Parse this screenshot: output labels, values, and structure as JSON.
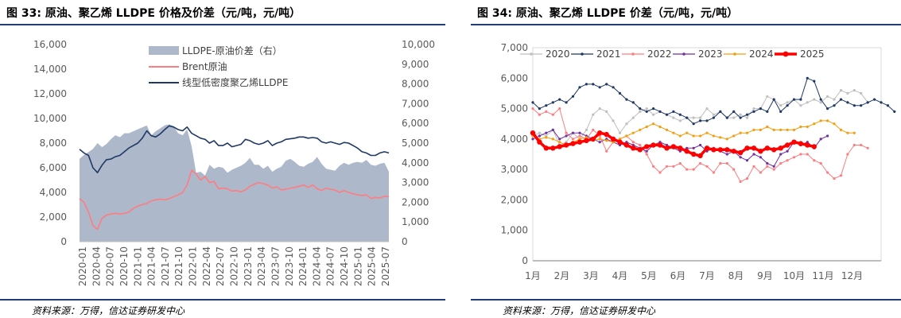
{
  "charts": [
    {
      "figure_label": "图 33: 原油、聚乙烯 LLDPE 价格及价差（元/吨，元/吨）",
      "source": "资料来源：万得，信达证券研发中心"
    },
    {
      "figure_label": "图 34: 原油、聚乙烯 LLDPE 价差（元/吨，元/吨）",
      "source": "资料来源：万得，信达证券研发中心"
    }
  ],
  "chart_data": [
    {
      "type": "line",
      "title": "原油、聚乙烯 LLDPE 价格及价差（元/吨，元/吨）",
      "x_labels": [
        "2020-01",
        "2020-04",
        "2020-07",
        "2020-10",
        "2021-01",
        "2021-04",
        "2021-07",
        "2021-10",
        "2022-01",
        "2022-04",
        "2022-07",
        "2022-10",
        "2023-01",
        "2023-04",
        "2023-07",
        "2023-10",
        "2024-01",
        "2024-04",
        "2024-07",
        "2024-10",
        "2025-01",
        "2025-04",
        "2025-07"
      ],
      "y_left": {
        "min": 0,
        "max": 16000,
        "ticks": [
          "0",
          "2,000",
          "4,000",
          "6,000",
          "8,000",
          "10,000",
          "12,000",
          "14,000",
          "16,000"
        ]
      },
      "y_right": {
        "min": 0,
        "max": 10000,
        "ticks": [
          "0",
          "1,000",
          "2,000",
          "3,000",
          "4,000",
          "5,000",
          "6,000",
          "7,000",
          "8,000",
          "9,000",
          "10,000"
        ]
      },
      "series": [
        {
          "name": "LLDPE-原油价差（右）",
          "kind": "area",
          "axis": "right",
          "color": "#adb9ca",
          "values": [
            4200,
            4400,
            4550,
            4700,
            5000,
            4800,
            4950,
            5200,
            5400,
            5300,
            5500,
            5500,
            5600,
            5700,
            5800,
            5900,
            5400,
            5600,
            5750,
            5900,
            5950,
            5850,
            5500,
            5400,
            5700,
            4850,
            3500,
            3550,
            3350,
            3900,
            3700,
            3800,
            3750,
            3500,
            3650,
            3750,
            3850,
            4000,
            4250,
            3900,
            3900,
            3700,
            3850,
            3550,
            3700,
            3800,
            4100,
            4200,
            4050,
            3850,
            3800,
            3950,
            4050,
            4300,
            3950,
            3700,
            3650,
            3600,
            3850,
            4000,
            3900,
            4000,
            4050,
            4000,
            4150,
            3900,
            3850,
            3950,
            4000,
            3550
          ]
        },
        {
          "name": "Brent原油",
          "kind": "line",
          "axis": "left",
          "color": "#ff7c80",
          "values": [
            3500,
            3200,
            2400,
            1300,
            1000,
            1900,
            2150,
            2250,
            2300,
            2250,
            2300,
            2400,
            2700,
            2900,
            3000,
            3100,
            3300,
            3400,
            3450,
            3400,
            3500,
            3650,
            3800,
            4000,
            4600,
            5800,
            5500,
            5000,
            5300,
            4800,
            4900,
            4300,
            4350,
            4300,
            4100,
            4150,
            4050,
            4200,
            4500,
            4650,
            4800,
            4700,
            4600,
            4350,
            4450,
            4200,
            4250,
            4350,
            4400,
            4500,
            4600,
            4400,
            4600,
            4300,
            4150,
            4350,
            4250,
            4200,
            4000,
            4150,
            4000,
            3900,
            3800,
            3750,
            3800,
            3500,
            3600,
            3550,
            3700,
            3650
          ]
        },
        {
          "name": "线型低密度聚乙烯LLDPE",
          "kind": "line",
          "axis": "left",
          "color": "#1f3864",
          "values": [
            7500,
            7200,
            7000,
            6000,
            5600,
            6200,
            6650,
            6700,
            6900,
            7000,
            7300,
            7600,
            7800,
            8000,
            8400,
            9000,
            8600,
            8500,
            8750,
            9100,
            9400,
            9300,
            9100,
            9000,
            9300,
            8800,
            8600,
            8400,
            8300,
            8000,
            8200,
            7800,
            7800,
            8000,
            7700,
            7800,
            7900,
            8300,
            8200,
            8000,
            7900,
            8000,
            8200,
            7800,
            8000,
            8100,
            8300,
            8350,
            8400,
            8500,
            8500,
            8400,
            8450,
            8400,
            8100,
            8000,
            8100,
            8000,
            7900,
            8050,
            8000,
            7800,
            7600,
            7300,
            7200,
            7000,
            7000,
            7200,
            7300,
            7200
          ]
        }
      ]
    },
    {
      "type": "line",
      "title": "原油、聚乙烯 LLDPE 价差（元/吨，元/吨）",
      "x_labels": [
        "1月",
        "2月",
        "3月",
        "4月",
        "5月",
        "6月",
        "7月",
        "8月",
        "9月",
        "10月",
        "11月",
        "12月"
      ],
      "y": {
        "min": 0,
        "max": 7000,
        "ticks": [
          "0",
          "1,000",
          "2,000",
          "3,000",
          "4,000",
          "5,000",
          "6,000",
          "7,000"
        ]
      },
      "series": [
        {
          "name": "2020",
          "color": "#bfbfbf",
          "marker": "circle",
          "values": [
            4100,
            4200,
            4100,
            4300,
            3800,
            3900,
            4200,
            4000,
            4300,
            4800,
            5000,
            4900,
            4600,
            4200,
            4500,
            4700,
            4900,
            5000,
            4800,
            4900,
            4800,
            4700,
            4600,
            4700,
            4700,
            4700,
            5000,
            4800,
            4900,
            4700,
            4700,
            4800,
            4700,
            5000,
            5000,
            5400,
            5300,
            5100,
            5200,
            5300,
            5100,
            5200,
            5300,
            5200,
            5400,
            5300,
            5600,
            5500,
            5600,
            5500,
            5200
          ]
        },
        {
          "name": "2021",
          "color": "#1f3864",
          "marker": "circle",
          "values": [
            5200,
            5000,
            5100,
            5200,
            5300,
            5200,
            5400,
            5700,
            5800,
            5800,
            5700,
            5800,
            5700,
            5500,
            5300,
            5200,
            5000,
            4900,
            5000,
            4900,
            4800,
            4900,
            4800,
            4700,
            4500,
            4600,
            4600,
            4700,
            4900,
            4700,
            4900,
            4700,
            4800,
            4900,
            5000,
            4900,
            5300,
            4900,
            5100,
            5300,
            5300,
            6000,
            5900,
            5300,
            5000,
            5100,
            5300,
            5200,
            5100,
            5100,
            5200,
            5300,
            5200,
            5100,
            4900
          ]
        },
        {
          "name": "2022",
          "color": "#ff7c80",
          "marker": "circle",
          "values": [
            5000,
            4800,
            4900,
            4800,
            5000,
            4200,
            4000,
            4100,
            4000,
            4300,
            4100,
            3600,
            3900,
            4000,
            4100,
            3900,
            3800,
            3500,
            3100,
            2900,
            3100,
            3100,
            3200,
            3000,
            3000,
            3200,
            3100,
            2900,
            3200,
            3200,
            3000,
            2600,
            2700,
            3100,
            2900,
            3100,
            3000,
            3200,
            3300,
            3400,
            3500,
            3500,
            3300,
            3200,
            2900,
            2700,
            2800,
            3500,
            3800,
            3800,
            3700
          ]
        },
        {
          "name": "2023",
          "color": "#7030a0",
          "marker": "circle",
          "values": [
            4000,
            4100,
            4200,
            4300,
            4000,
            4100,
            4200,
            4200,
            4100,
            4000,
            3900,
            4000,
            3900,
            3800,
            3900,
            3800,
            3700,
            3600,
            3800,
            3900,
            3800,
            3700,
            3600,
            3700,
            3700,
            3800,
            3600,
            3700,
            3600,
            3500,
            3600,
            3400,
            3300,
            3500,
            3400,
            3200,
            3100,
            3500,
            3600,
            3900,
            3800,
            3900,
            3700,
            4000,
            4100
          ]
        },
        {
          "name": "2024",
          "color": "#f59d0e",
          "marker": "circle",
          "values": [
            4100,
            4000,
            4050,
            4000,
            3900,
            3800,
            3900,
            4000,
            4050,
            3950,
            4000,
            3950,
            3900,
            4000,
            4100,
            4200,
            4300,
            4400,
            4500,
            4400,
            4300,
            4200,
            4100,
            4200,
            4100,
            4100,
            4200,
            4100,
            4050,
            4000,
            4100,
            4200,
            4200,
            4300,
            4300,
            4400,
            4300,
            4300,
            4300,
            4300,
            4400,
            4400,
            4500,
            4600,
            4600,
            4500,
            4300,
            4200,
            4200
          ]
        },
        {
          "name": "2025",
          "color": "#ff0000",
          "marker": "circle",
          "bold": true,
          "values": [
            4200,
            3900,
            3700,
            3700,
            3750,
            3800,
            3850,
            3900,
            3950,
            4000,
            4200,
            4150,
            4000,
            3900,
            3800,
            3700,
            3650,
            3750,
            3800,
            3800,
            3700,
            3750,
            3700,
            3600,
            3500,
            3450,
            3700,
            3650,
            3650,
            3650,
            3600,
            3550,
            3700,
            3700,
            3600,
            3700,
            3650,
            3700,
            3800,
            3900,
            3850,
            3800,
            3750
          ]
        }
      ]
    }
  ]
}
